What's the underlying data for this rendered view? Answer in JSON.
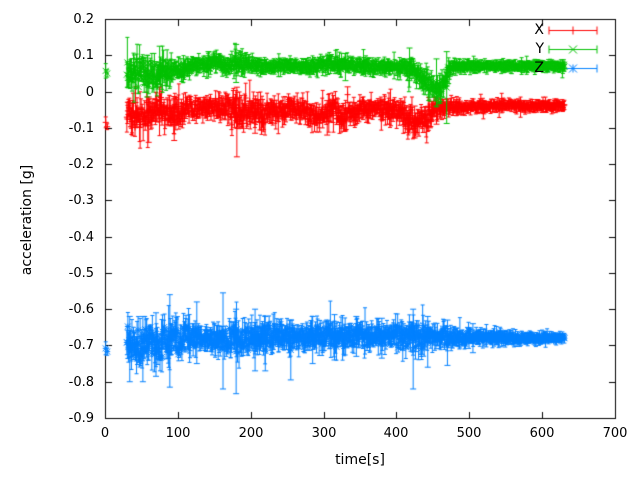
{
  "figure": {
    "background": "#ffffff",
    "axis_color": "#000000"
  },
  "chart_data": {
    "type": "scatter",
    "style": "errorbars",
    "title": "",
    "xlabel": "time[s]",
    "ylabel": "acceleration [g]",
    "xlim": [
      0,
      700
    ],
    "ylim": [
      -0.9,
      0.2
    ],
    "grid": false,
    "legend_position": "top-right",
    "axis_color": "#000000",
    "xticks": [
      {
        "v": 0,
        "label": "0"
      },
      {
        "v": 100,
        "label": "100"
      },
      {
        "v": 200,
        "label": "200"
      },
      {
        "v": 300,
        "label": "300"
      },
      {
        "v": 400,
        "label": "400"
      },
      {
        "v": 500,
        "label": "500"
      },
      {
        "v": 600,
        "label": "600"
      },
      {
        "v": 700,
        "label": "700"
      }
    ],
    "yticks": [
      {
        "v": 0.2,
        "label": "0.2"
      },
      {
        "v": 0.1,
        "label": "0.1"
      },
      {
        "v": 0,
        "label": "0"
      },
      {
        "v": -0.1,
        "label": "-0.1"
      },
      {
        "v": -0.2,
        "label": "-0.2"
      },
      {
        "v": -0.3,
        "label": "-0.3"
      },
      {
        "v": -0.4,
        "label": "-0.4"
      },
      {
        "v": -0.5,
        "label": "-0.5"
      },
      {
        "v": -0.6,
        "label": "-0.6"
      },
      {
        "v": -0.7,
        "label": "-0.7"
      },
      {
        "v": -0.8,
        "label": "-0.8"
      },
      {
        "v": -0.9,
        "label": "-0.9"
      }
    ],
    "series": [
      {
        "name": "X",
        "color": "#ff0000",
        "marker": "plus",
        "t_range": [
          30,
          631
        ],
        "initial_points": [
          [
            1,
            -0.085,
            0.015
          ],
          [
            3,
            -0.097,
            0.008
          ]
        ],
        "envelope": [
          [
            30,
            -0.055,
            0.05
          ],
          [
            40,
            -0.07,
            0.05
          ],
          [
            55,
            -0.075,
            0.045
          ],
          [
            65,
            -0.05,
            0.035
          ],
          [
            80,
            -0.055,
            0.04
          ],
          [
            95,
            -0.065,
            0.04
          ],
          [
            110,
            -0.05,
            0.03
          ],
          [
            125,
            -0.045,
            0.025
          ],
          [
            140,
            -0.04,
            0.025
          ],
          [
            155,
            -0.045,
            0.03
          ],
          [
            170,
            -0.05,
            0.04
          ],
          [
            182,
            -0.06,
            0.045
          ],
          [
            195,
            -0.05,
            0.04
          ],
          [
            208,
            -0.055,
            0.035
          ],
          [
            218,
            -0.065,
            0.035
          ],
          [
            228,
            -0.055,
            0.035
          ],
          [
            240,
            -0.05,
            0.03
          ],
          [
            255,
            -0.045,
            0.025
          ],
          [
            270,
            -0.05,
            0.025
          ],
          [
            285,
            -0.065,
            0.03
          ],
          [
            298,
            -0.072,
            0.03
          ],
          [
            312,
            -0.05,
            0.03
          ],
          [
            325,
            -0.065,
            0.035
          ],
          [
            338,
            -0.062,
            0.03
          ],
          [
            352,
            -0.045,
            0.025
          ],
          [
            368,
            -0.05,
            0.025
          ],
          [
            383,
            -0.045,
            0.028
          ],
          [
            398,
            -0.05,
            0.03
          ],
          [
            412,
            -0.068,
            0.033
          ],
          [
            424,
            -0.085,
            0.035
          ],
          [
            436,
            -0.08,
            0.03
          ],
          [
            446,
            -0.062,
            0.03
          ],
          [
            458,
            -0.05,
            0.022
          ],
          [
            470,
            -0.045,
            0.018
          ],
          [
            490,
            -0.042,
            0.014
          ],
          [
            520,
            -0.04,
            0.012
          ],
          [
            560,
            -0.038,
            0.011
          ],
          [
            600,
            -0.04,
            0.01
          ],
          [
            631,
            -0.04,
            0.01
          ]
        ],
        "spikes": [
          [
            60,
            -0.14,
            -0.015
          ],
          [
            95,
            -0.135,
            -0.02
          ],
          [
            181,
            -0.18,
            0.012
          ],
          [
            206,
            -0.115,
            -0.02
          ],
          [
            305,
            -0.12,
            -0.025
          ],
          [
            333,
            -0.03,
            0.013
          ],
          [
            425,
            -0.128,
            -0.04
          ],
          [
            455,
            -0.09,
            0.0
          ]
        ]
      },
      {
        "name": "Y",
        "color": "#00c000",
        "marker": "cross",
        "t_range": [
          30,
          631
        ],
        "initial_points": [
          [
            1,
            0.057,
            0.02
          ],
          [
            3,
            0.05,
            0.01
          ]
        ],
        "envelope": [
          [
            30,
            0.055,
            0.038
          ],
          [
            45,
            0.05,
            0.042
          ],
          [
            60,
            0.05,
            0.042
          ],
          [
            75,
            0.055,
            0.04
          ],
          [
            90,
            0.06,
            0.035
          ],
          [
            105,
            0.065,
            0.025
          ],
          [
            120,
            0.07,
            0.02
          ],
          [
            135,
            0.075,
            0.02
          ],
          [
            150,
            0.08,
            0.02
          ],
          [
            165,
            0.075,
            0.02
          ],
          [
            180,
            0.08,
            0.024
          ],
          [
            195,
            0.075,
            0.02
          ],
          [
            210,
            0.07,
            0.016
          ],
          [
            230,
            0.07,
            0.015
          ],
          [
            250,
            0.072,
            0.015
          ],
          [
            270,
            0.07,
            0.015
          ],
          [
            290,
            0.072,
            0.017
          ],
          [
            308,
            0.078,
            0.02
          ],
          [
            322,
            0.075,
            0.018
          ],
          [
            340,
            0.07,
            0.015
          ],
          [
            358,
            0.072,
            0.017
          ],
          [
            375,
            0.07,
            0.015
          ],
          [
            392,
            0.068,
            0.015
          ],
          [
            408,
            0.065,
            0.02
          ],
          [
            422,
            0.057,
            0.024
          ],
          [
            438,
            0.032,
            0.03
          ],
          [
            450,
            0.012,
            0.03
          ],
          [
            458,
            0.0,
            0.026
          ],
          [
            464,
            0.02,
            0.03
          ],
          [
            470,
            0.05,
            0.025
          ],
          [
            476,
            0.066,
            0.018
          ],
          [
            490,
            0.07,
            0.012
          ],
          [
            520,
            0.07,
            0.01
          ],
          [
            560,
            0.07,
            0.01
          ],
          [
            600,
            0.07,
            0.009
          ],
          [
            631,
            0.07,
            0.009
          ]
        ],
        "spikes": [
          [
            58,
            -0.015,
            0.1
          ],
          [
            75,
            0.02,
            0.125
          ],
          [
            142,
            0.04,
            0.11
          ],
          [
            180,
            0.025,
            0.13
          ],
          [
            330,
            0.03,
            0.105
          ],
          [
            418,
            0.03,
            0.12
          ],
          [
            455,
            -0.04,
            0.09
          ],
          [
            469,
            -0.088,
            0.11
          ]
        ]
      },
      {
        "name": "Z",
        "color": "#0080ff",
        "marker": "star",
        "t_range": [
          30,
          631
        ],
        "initial_points": [
          [
            1,
            -0.708,
            0.018
          ],
          [
            3,
            -0.717,
            0.01
          ]
        ],
        "envelope": [
          [
            30,
            -0.69,
            0.055
          ],
          [
            45,
            -0.7,
            0.06
          ],
          [
            60,
            -0.69,
            0.055
          ],
          [
            75,
            -0.69,
            0.05
          ],
          [
            90,
            -0.69,
            0.055
          ],
          [
            105,
            -0.685,
            0.045
          ],
          [
            120,
            -0.68,
            0.035
          ],
          [
            140,
            -0.68,
            0.03
          ],
          [
            160,
            -0.68,
            0.035
          ],
          [
            180,
            -0.68,
            0.045
          ],
          [
            200,
            -0.68,
            0.04
          ],
          [
            220,
            -0.68,
            0.04
          ],
          [
            240,
            -0.675,
            0.035
          ],
          [
            260,
            -0.675,
            0.03
          ],
          [
            280,
            -0.675,
            0.032
          ],
          [
            300,
            -0.68,
            0.035
          ],
          [
            315,
            -0.675,
            0.04
          ],
          [
            330,
            -0.675,
            0.03
          ],
          [
            350,
            -0.675,
            0.035
          ],
          [
            370,
            -0.675,
            0.03
          ],
          [
            390,
            -0.675,
            0.03
          ],
          [
            410,
            -0.675,
            0.035
          ],
          [
            428,
            -0.675,
            0.045
          ],
          [
            445,
            -0.675,
            0.03
          ],
          [
            465,
            -0.675,
            0.025
          ],
          [
            490,
            -0.678,
            0.02
          ],
          [
            520,
            -0.678,
            0.017
          ],
          [
            550,
            -0.678,
            0.015
          ],
          [
            580,
            -0.68,
            0.012
          ],
          [
            610,
            -0.68,
            0.01
          ],
          [
            631,
            -0.68,
            0.01
          ]
        ],
        "spikes": [
          [
            34,
            -0.8,
            -0.62
          ],
          [
            52,
            -0.8,
            -0.62
          ],
          [
            70,
            -0.785,
            -0.61
          ],
          [
            89,
            -0.815,
            -0.56
          ],
          [
            126,
            -0.75,
            -0.58
          ],
          [
            162,
            -0.82,
            -0.555
          ],
          [
            180,
            -0.833,
            -0.6
          ],
          [
            206,
            -0.77,
            -0.6
          ],
          [
            220,
            -0.77,
            -0.62
          ],
          [
            255,
            -0.795,
            -0.63
          ],
          [
            285,
            -0.75,
            -0.62
          ],
          [
            315,
            -0.74,
            -0.615
          ],
          [
            345,
            -0.73,
            -0.62
          ],
          [
            380,
            -0.735,
            -0.625
          ],
          [
            423,
            -0.82,
            -0.6
          ],
          [
            443,
            -0.76,
            -0.62
          ],
          [
            470,
            -0.755,
            -0.63
          ],
          [
            505,
            -0.72,
            -0.64
          ]
        ]
      }
    ]
  }
}
